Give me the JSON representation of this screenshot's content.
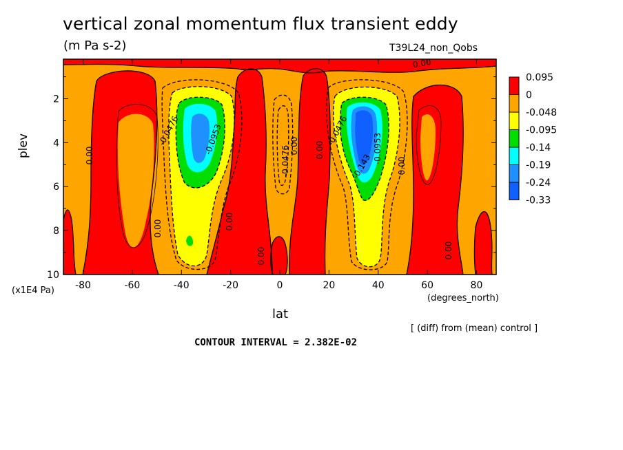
{
  "chart_data": {
    "type": "heatmap",
    "title": "vertical zonal momentum flux transient eddy",
    "subtitle": "(m Pa s-2)",
    "run_label": "T39L24_non_Qobs",
    "xlabel": "lat",
    "x_unit_label": "(degrees_north)",
    "ylabel": "plev",
    "y_unit_label": "(x1E4 Pa)",
    "x_ticks": [
      "-80",
      "-60",
      "-40",
      "-20",
      "0",
      "20",
      "40",
      "60",
      "80"
    ],
    "y_ticks": [
      "2",
      "4",
      "6",
      "8",
      "10"
    ],
    "xlim": [
      -88,
      88
    ],
    "ylim": [
      10,
      0.2
    ],
    "colorbar": {
      "labels": [
        "0.095",
        "0",
        "-0.048",
        "-0.095",
        "-0.14",
        "-0.19",
        "-0.24",
        "-0.33"
      ],
      "colors": [
        "#ff0000",
        "#ffa500",
        "#ffff00",
        "#00dd00",
        "#00ffff",
        "#1e90ff",
        "#1060ff"
      ]
    },
    "contour_labels": [
      "0.00",
      "0.00",
      "0.00",
      "0.00",
      "0.00",
      "0.00",
      "0.00",
      "0.00",
      "0.00",
      "-0.0476",
      "-0.0953",
      "-0.0476",
      "-0.0476",
      "-0.143",
      "-0.0953"
    ],
    "annotation": "[ (diff) from (mean) control ]",
    "contour_interval": "CONTOUR INTERVAL = 2.382E-02"
  }
}
